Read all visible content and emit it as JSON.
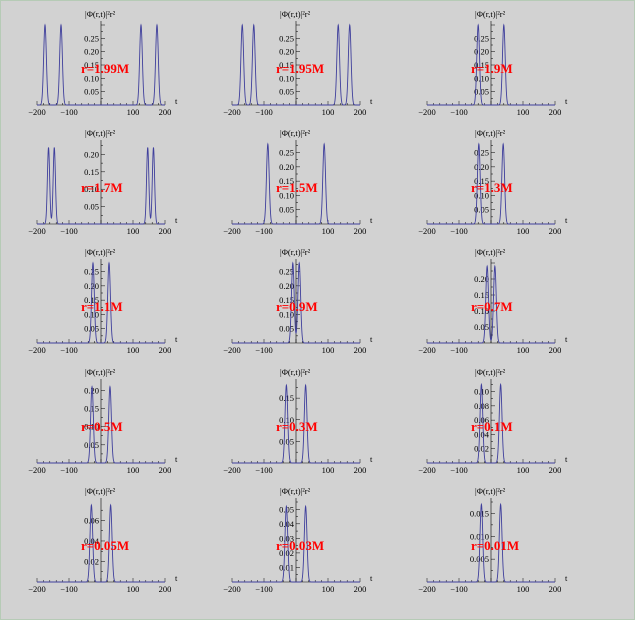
{
  "figure": {
    "description_title": "",
    "ylabel": "|Φ(r,t)|²r²",
    "xlabel": "t",
    "xticks": [
      -200,
      -100,
      100,
      200
    ],
    "colors": {
      "curve": "#3f3f9c",
      "label": "#ff0000",
      "axis": "#000000",
      "background": "#d2d2d2"
    }
  },
  "chart_data": [
    {
      "type": "line",
      "label": "r=1.99M",
      "ylabel": "|Φ(r,t)|²r²",
      "xlabel": "t",
      "xlim": [
        -200,
        200
      ],
      "ylim": [
        0,
        0.3
      ],
      "yticks": [
        0.05,
        0.1,
        0.15,
        0.2,
        0.25
      ],
      "peaks": [
        {
          "t": -175,
          "h": 0.3,
          "w": 6
        },
        {
          "t": -125,
          "h": 0.3,
          "w": 6
        },
        {
          "t": 125,
          "h": 0.3,
          "w": 6
        },
        {
          "t": 175,
          "h": 0.3,
          "w": 6
        }
      ]
    },
    {
      "type": "line",
      "label": "r=1.95M",
      "ylabel": "|Φ(r,t)|²r²",
      "xlabel": "t",
      "xlim": [
        -200,
        200
      ],
      "ylim": [
        0,
        0.3
      ],
      "yticks": [
        0.05,
        0.1,
        0.15,
        0.2,
        0.25
      ],
      "peaks": [
        {
          "t": -168,
          "h": 0.3,
          "w": 6
        },
        {
          "t": -132,
          "h": 0.3,
          "w": 6
        },
        {
          "t": 132,
          "h": 0.3,
          "w": 6
        },
        {
          "t": 168,
          "h": 0.3,
          "w": 6
        }
      ]
    },
    {
      "type": "line",
      "label": "r=1.9M",
      "ylabel": "|Φ(r,t)|²r²",
      "xlabel": "t",
      "xlim": [
        -200,
        200
      ],
      "ylim": [
        0,
        0.3
      ],
      "yticks": [
        0.05,
        0.1,
        0.15,
        0.2,
        0.25
      ],
      "peaks": [
        {
          "t": -40,
          "h": 0.3,
          "w": 6
        },
        {
          "t": 40,
          "h": 0.3,
          "w": 6
        }
      ]
    },
    {
      "type": "line",
      "label": "r=1.7M",
      "ylabel": "|Φ(r,t)|²r²",
      "xlabel": "t",
      "xlim": [
        -200,
        200
      ],
      "ylim": [
        0,
        0.23
      ],
      "yticks": [
        0.05,
        0.1,
        0.15,
        0.2
      ],
      "peaks": [
        {
          "t": -164,
          "h": 0.22,
          "w": 5
        },
        {
          "t": -146,
          "h": 0.22,
          "w": 5
        },
        {
          "t": 146,
          "h": 0.22,
          "w": 5
        },
        {
          "t": 164,
          "h": 0.22,
          "w": 5
        }
      ]
    },
    {
      "type": "line",
      "label": "r=1.5M",
      "ylabel": "|Φ(r,t)|²r²",
      "xlabel": "t",
      "xlim": [
        -200,
        200
      ],
      "ylim": [
        0,
        0.28
      ],
      "yticks": [
        0.05,
        0.1,
        0.15,
        0.2,
        0.25
      ],
      "peaks": [
        {
          "t": -88,
          "h": 0.28,
          "w": 6
        },
        {
          "t": 88,
          "h": 0.28,
          "w": 6
        }
      ]
    },
    {
      "type": "line",
      "label": "r=1.3M",
      "ylabel": "|Φ(r,t)|²r²",
      "xlabel": "t",
      "xlim": [
        -200,
        200
      ],
      "ylim": [
        0,
        0.28
      ],
      "yticks": [
        0.05,
        0.1,
        0.15,
        0.2,
        0.25
      ],
      "peaks": [
        {
          "t": -38,
          "h": 0.28,
          "w": 6
        },
        {
          "t": 38,
          "h": 0.28,
          "w": 6
        }
      ]
    },
    {
      "type": "line",
      "label": "r=1.1M",
      "ylabel": "|Φ(r,t)|²r²",
      "xlabel": "t",
      "xlim": [
        -200,
        200
      ],
      "ylim": [
        0,
        0.28
      ],
      "yticks": [
        0.05,
        0.1,
        0.15,
        0.2,
        0.25
      ],
      "peaks": [
        {
          "t": -25,
          "h": 0.28,
          "w": 6
        },
        {
          "t": 25,
          "h": 0.28,
          "w": 6
        }
      ]
    },
    {
      "type": "line",
      "label": "r=0.9M",
      "ylabel": "|Φ(r,t)|²r²",
      "xlabel": "t",
      "xlim": [
        -200,
        200
      ],
      "ylim": [
        0,
        0.28
      ],
      "yticks": [
        0.05,
        0.1,
        0.15,
        0.2,
        0.25
      ],
      "peaks": [
        {
          "t": -10,
          "h": 0.28,
          "w": 6
        },
        {
          "t": 10,
          "h": 0.28,
          "w": 6
        }
      ]
    },
    {
      "type": "line",
      "label": "r=0.7M",
      "ylabel": "|Φ(r,t)|²r²",
      "xlabel": "t",
      "xlim": [
        -200,
        200
      ],
      "ylim": [
        0,
        0.25
      ],
      "yticks": [
        0.05,
        0.1,
        0.15,
        0.2
      ],
      "peaks": [
        {
          "t": -12,
          "h": 0.24,
          "w": 6
        },
        {
          "t": 12,
          "h": 0.24,
          "w": 6
        }
      ]
    },
    {
      "type": "line",
      "label": "r=0.5M",
      "ylabel": "|Φ(r,t)|²r²",
      "xlabel": "t",
      "xlim": [
        -200,
        200
      ],
      "ylim": [
        0,
        0.22
      ],
      "yticks": [
        0.05,
        0.1,
        0.15,
        0.2
      ],
      "peaks": [
        {
          "t": -28,
          "h": 0.21,
          "w": 6
        },
        {
          "t": 28,
          "h": 0.21,
          "w": 6
        }
      ]
    },
    {
      "type": "line",
      "label": "r=0.3M",
      "ylabel": "|Φ(r,t)|²r²",
      "xlabel": "t",
      "xlim": [
        -200,
        200
      ],
      "ylim": [
        0,
        0.185
      ],
      "yticks": [
        0.05,
        0.1,
        0.15
      ],
      "peaks": [
        {
          "t": -30,
          "h": 0.18,
          "w": 6
        },
        {
          "t": 30,
          "h": 0.18,
          "w": 6
        }
      ]
    },
    {
      "type": "line",
      "label": "r=0.1M",
      "ylabel": "|Φ(r,t)|²r²",
      "xlabel": "t",
      "xlim": [
        -200,
        200
      ],
      "ylim": [
        0,
        0.112
      ],
      "yticks": [
        0.02,
        0.04,
        0.06,
        0.08,
        0.1
      ],
      "peaks": [
        {
          "t": -30,
          "h": 0.11,
          "w": 6
        },
        {
          "t": 30,
          "h": 0.11,
          "w": 6
        }
      ]
    },
    {
      "type": "line",
      "label": "r=0.05M",
      "ylabel": "|Φ(r,t)|²r²",
      "xlabel": "t",
      "xlim": [
        -200,
        200
      ],
      "ylim": [
        0,
        0.078
      ],
      "yticks": [
        0.02,
        0.04,
        0.06
      ],
      "peaks": [
        {
          "t": -30,
          "h": 0.075,
          "w": 6
        },
        {
          "t": 30,
          "h": 0.075,
          "w": 6
        }
      ]
    },
    {
      "type": "line",
      "label": "r=0.03M",
      "ylabel": "|Φ(r,t)|²r²",
      "xlabel": "t",
      "xlim": [
        -200,
        200
      ],
      "ylim": [
        0,
        0.055
      ],
      "yticks": [
        0.01,
        0.02,
        0.03,
        0.04,
        0.05
      ],
      "peaks": [
        {
          "t": -30,
          "h": 0.052,
          "w": 6
        },
        {
          "t": 30,
          "h": 0.052,
          "w": 6
        }
      ]
    },
    {
      "type": "line",
      "label": "r=0.01M",
      "ylabel": "|Φ(r,t)|²r²",
      "xlabel": "t",
      "xlim": [
        -200,
        200
      ],
      "ylim": [
        0,
        0.0175
      ],
      "yticks": [
        0.005,
        0.01,
        0.015
      ],
      "peaks": [
        {
          "t": -30,
          "h": 0.017,
          "w": 6
        },
        {
          "t": 30,
          "h": 0.017,
          "w": 6
        }
      ]
    }
  ]
}
